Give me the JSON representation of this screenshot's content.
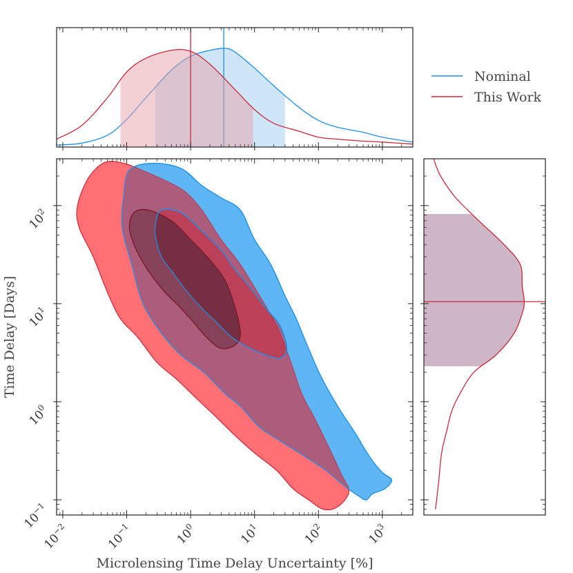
{
  "colors": {
    "nominal": "#1f8fe6",
    "nominal_fill": "#5fb6f5",
    "this_work": "#c8283a",
    "this_work_fill": "#ff6f73",
    "overlap_fill": "#9e5b7e",
    "inner_fill": "#7a3a4e",
    "axis": "#222222"
  },
  "chart_data": [
    {
      "panel": "main",
      "type": "contour",
      "xlabel": "Microlensing Time Delay Uncertainty [%]",
      "ylabel": "Time Delay [Days]",
      "x_scale": "log",
      "y_scale": "log",
      "xlim": [
        0.008,
        3000
      ],
      "ylim": [
        0.07,
        300
      ],
      "xticks": [
        {
          "value": 0.01,
          "base": "10",
          "exp": "−2"
        },
        {
          "value": 0.1,
          "base": "10",
          "exp": "−1"
        },
        {
          "value": 1,
          "base": "10",
          "exp": "0"
        },
        {
          "value": 10,
          "base": "10",
          "exp": "1"
        },
        {
          "value": 100,
          "base": "10",
          "exp": "2"
        },
        {
          "value": 1000,
          "base": "10",
          "exp": "3"
        }
      ],
      "yticks": [
        {
          "value": 0.1,
          "base": "10",
          "exp": "−1"
        },
        {
          "value": 1,
          "base": "10",
          "exp": "0"
        },
        {
          "value": 10,
          "base": "10",
          "exp": "1"
        },
        {
          "value": 100,
          "base": "10",
          "exp": "2"
        }
      ],
      "series": [
        {
          "name": "Nominal",
          "contours": [
            {
              "level": "outer",
              "points": [
                [
                  0.11,
                  230
                ],
                [
                  0.25,
                  270
                ],
                [
                  0.7,
                  240
                ],
                [
                  1.5,
                  160
                ],
                [
                  3,
                  120
                ],
                [
                  6,
                  90
                ],
                [
                  10,
                  45
                ],
                [
                  18,
                  25
                ],
                [
                  30,
                  12
                ],
                [
                  45,
                  7
                ],
                [
                  70,
                  3.5
                ],
                [
                  110,
                  1.8
                ],
                [
                  200,
                  0.9
                ],
                [
                  400,
                  0.45
                ],
                [
                  500,
                  0.35
                ],
                [
                  700,
                  0.25
                ],
                [
                  1000,
                  0.19
                ],
                [
                  1400,
                  0.16
                ],
                [
                  1100,
                  0.13
                ],
                [
                  700,
                  0.115
                ],
                [
                  560,
                  0.1
                ],
                [
                  420,
                  0.11
                ],
                [
                  250,
                  0.14
                ],
                [
                  130,
                  0.2
                ],
                [
                  60,
                  0.28
                ],
                [
                  25,
                  0.4
                ],
                [
                  12,
                  0.55
                ],
                [
                  6,
                  0.9
                ],
                [
                  3.5,
                  1.2
                ],
                [
                  1.6,
                  2
                ],
                [
                  0.7,
                  3
                ],
                [
                  0.35,
                  5
                ],
                [
                  0.18,
                  10
                ],
                [
                  0.12,
                  25
                ],
                [
                  0.085,
                  60
                ],
                [
                  0.09,
                  130
                ]
              ]
            },
            {
              "level": "inner",
              "points": [
                [
                  0.35,
                  90
                ],
                [
                  0.7,
                  85
                ],
                [
                  1.5,
                  55
                ],
                [
                  3,
                  35
                ],
                [
                  5,
                  22
                ],
                [
                  9,
                  14
                ],
                [
                  15,
                  9
                ],
                [
                  25,
                  6
                ],
                [
                  32,
                  3.5
                ],
                [
                  25,
                  2.8
                ],
                [
                  15,
                  3
                ],
                [
                  8,
                  3.6
                ],
                [
                  4.5,
                  4.5
                ],
                [
                  2.5,
                  6.5
                ],
                [
                  1.5,
                  9
                ],
                [
                  0.9,
                  13
                ],
                [
                  0.55,
                  20
                ],
                [
                  0.35,
                  30
                ],
                [
                  0.28,
                  50
                ],
                [
                  0.29,
                  70
                ]
              ]
            }
          ]
        },
        {
          "name": "This Work",
          "contours": [
            {
              "level": "outer",
              "points": [
                [
                  0.025,
                  190
                ],
                [
                  0.045,
                  275
                ],
                [
                  0.09,
                  270
                ],
                [
                  0.2,
                  220
                ],
                [
                  0.4,
                  180
                ],
                [
                  0.8,
                  140
                ],
                [
                  1.5,
                  90
                ],
                [
                  3,
                  45
                ],
                [
                  6,
                  25
                ],
                [
                  12,
                  12
                ],
                [
                  22,
                  6
                ],
                [
                  35,
                  2.8
                ],
                [
                  55,
                  1.2
                ],
                [
                  90,
                  0.65
                ],
                [
                  160,
                  0.3
                ],
                [
                  230,
                  0.18
                ],
                [
                  300,
                  0.12
                ],
                [
                  200,
                  0.085
                ],
                [
                  120,
                  0.08
                ],
                [
                  70,
                  0.1
                ],
                [
                  40,
                  0.13
                ],
                [
                  22,
                  0.2
                ],
                [
                  10,
                  0.3
                ],
                [
                  5,
                  0.45
                ],
                [
                  2.5,
                  0.7
                ],
                [
                  1.2,
                  1.1
                ],
                [
                  0.6,
                  1.7
                ],
                [
                  0.3,
                  2.5
                ],
                [
                  0.15,
                  4.5
                ],
                [
                  0.08,
                  7
                ],
                [
                  0.05,
                  13
                ],
                [
                  0.03,
                  30
                ],
                [
                  0.018,
                  60
                ],
                [
                  0.017,
                  100
                ]
              ]
            },
            {
              "level": "inner",
              "points": [
                [
                  0.13,
                  85
                ],
                [
                  0.22,
                  90
                ],
                [
                  0.5,
                  70
                ],
                [
                  1,
                  45
                ],
                [
                  2,
                  28
                ],
                [
                  3.5,
                  17
                ],
                [
                  5,
                  9
                ],
                [
                  6,
                  5
                ],
                [
                  5,
                  3.8
                ],
                [
                  3,
                  3.5
                ],
                [
                  1.8,
                  4.5
                ],
                [
                  1.1,
                  6.5
                ],
                [
                  0.7,
                  9
                ],
                [
                  0.4,
                  13
                ],
                [
                  0.25,
                  19
                ],
                [
                  0.17,
                  28
                ],
                [
                  0.13,
                  40
                ],
                [
                  0.11,
                  60
                ]
              ]
            }
          ]
        }
      ]
    },
    {
      "panel": "top",
      "type": "kde",
      "x_scale": "log",
      "xlim": [
        0.008,
        3000
      ],
      "series": [
        {
          "name": "Nominal",
          "x": [
            0.008,
            0.02,
            0.05,
            0.1,
            0.2,
            0.5,
            1,
            2,
            3.5,
            5,
            10,
            20,
            50,
            100,
            200,
            500,
            1000,
            3000
          ],
          "density": [
            0.02,
            0.04,
            0.12,
            0.28,
            0.5,
            0.78,
            0.92,
            0.98,
            1.0,
            0.96,
            0.8,
            0.62,
            0.4,
            0.27,
            0.2,
            0.15,
            0.1,
            0.05
          ],
          "marker": 3.3,
          "interval": [
            0.28,
            30
          ]
        },
        {
          "name": "This Work",
          "x": [
            0.008,
            0.02,
            0.05,
            0.1,
            0.2,
            0.5,
            1,
            2,
            5,
            10,
            20,
            50,
            100,
            200,
            500,
            1000,
            3000
          ],
          "density": [
            0.08,
            0.22,
            0.5,
            0.76,
            0.9,
            0.98,
            0.97,
            0.84,
            0.58,
            0.38,
            0.24,
            0.16,
            0.1,
            0.08,
            0.06,
            0.05,
            0.03
          ],
          "marker": 1.0,
          "interval": [
            0.08,
            9.5
          ]
        }
      ]
    },
    {
      "panel": "right",
      "type": "kde",
      "y_scale": "log",
      "ylim": [
        0.07,
        300
      ],
      "series": [
        {
          "name": "This Work",
          "y": [
            0.08,
            0.15,
            0.3,
            0.5,
            0.8,
            1.2,
            2,
            3,
            5,
            8,
            10.5,
            15,
            25,
            40,
            70,
            120,
            200,
            300
          ],
          "density": [
            0.02,
            0.05,
            0.08,
            0.13,
            0.18,
            0.26,
            0.4,
            0.62,
            0.8,
            0.88,
            0.9,
            0.88,
            0.86,
            0.7,
            0.45,
            0.22,
            0.07,
            0.0
          ],
          "marker": 10.5,
          "interval": [
            2.3,
            82
          ]
        }
      ]
    }
  ],
  "legend": {
    "position": "top-right",
    "items": [
      {
        "label": "Nominal",
        "color": "#1f8fe6"
      },
      {
        "label": "This Work",
        "color": "#c8283a"
      }
    ]
  }
}
